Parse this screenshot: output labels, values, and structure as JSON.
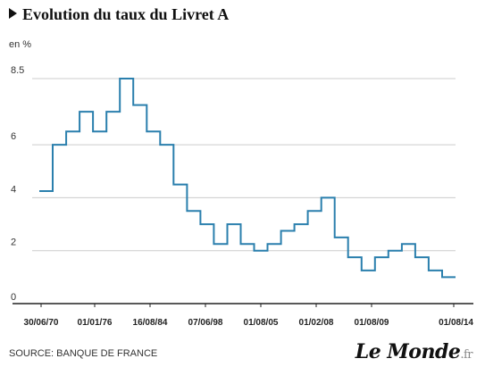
{
  "header": {
    "title": "Evolution du taux du Livret A",
    "unit": "en %"
  },
  "footer": {
    "source": "SOURCE: BANQUE DE FRANCE",
    "logo": "Le Monde",
    "logo_tld": ".fr"
  },
  "colors": {
    "line": "#2a7fad",
    "grid": "#cccccc",
    "axis": "#222222"
  },
  "chart_data": {
    "type": "line",
    "step": true,
    "title": "Evolution du taux du Livret A",
    "ylabel": "en %",
    "ylim": [
      0,
      8.5
    ],
    "yticks": [
      {
        "value": 0,
        "label": "0"
      },
      {
        "value": 2,
        "label": "2"
      },
      {
        "value": 4,
        "label": "4"
      },
      {
        "value": 6,
        "label": "6"
      },
      {
        "value": 8.5,
        "label": "8.5"
      }
    ],
    "xticks": [
      "30/06/70",
      "01/01/76",
      "16/08/84",
      "07/06/98",
      "01/08/05",
      "01/02/08",
      "01/08/09",
      "01/08/14"
    ],
    "grid": true,
    "series": [
      {
        "values": [
          4.25,
          6.0,
          6.5,
          7.25,
          6.5,
          7.25,
          8.5,
          7.5,
          6.5,
          6.0,
          4.5,
          3.5,
          3.0,
          2.25,
          3.0,
          2.25,
          2.0,
          2.25,
          2.75,
          3.0,
          3.5,
          4.0,
          2.5,
          1.75,
          1.25,
          1.75,
          2.0,
          2.25,
          1.75,
          1.25,
          1.0
        ]
      }
    ]
  }
}
